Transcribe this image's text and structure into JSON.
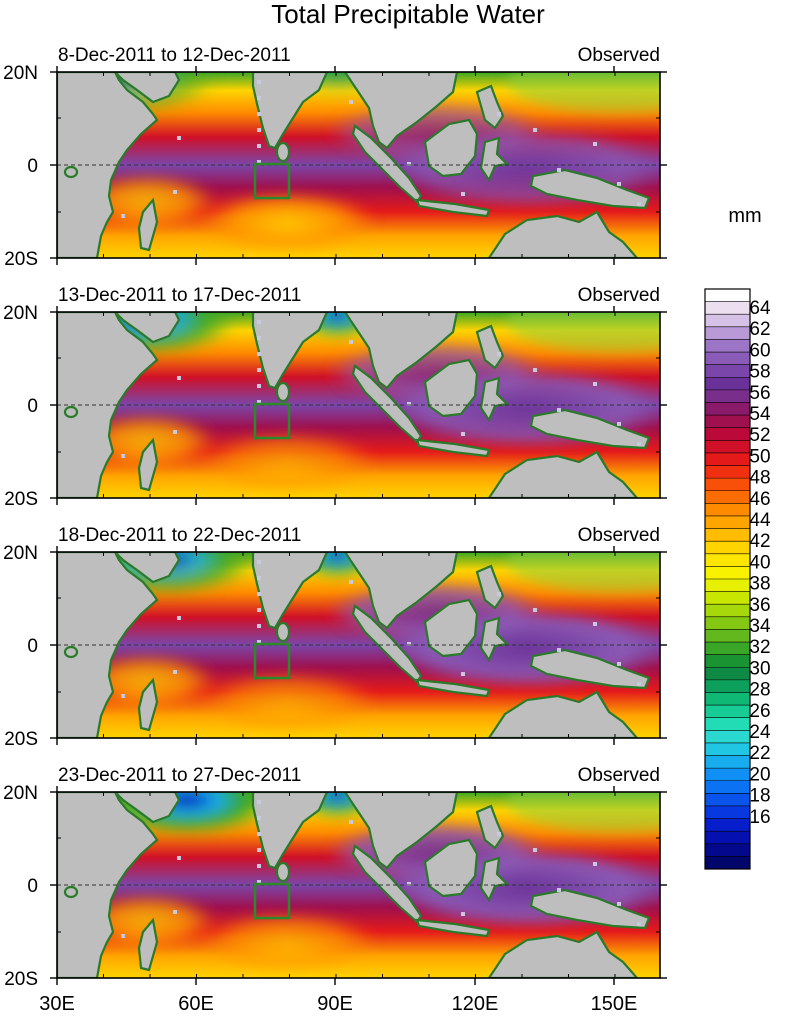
{
  "title": "Total Precipitable Water",
  "units_label": "mm",
  "lat_labels": [
    "20N",
    "0",
    "20S"
  ],
  "lon_labels": [
    "30E",
    "60E",
    "90E",
    "120E",
    "150E"
  ],
  "panels": [
    {
      "date_range": "8-Dec-2011 to 12-Dec-2011",
      "status": "Observed"
    },
    {
      "date_range": "13-Dec-2011 to 17-Dec-2011",
      "status": "Observed"
    },
    {
      "date_range": "18-Dec-2011 to 22-Dec-2011",
      "status": "Observed"
    },
    {
      "date_range": "23-Dec-2011 to 27-Dec-2011",
      "status": "Observed"
    }
  ],
  "colorbar": {
    "labels": [
      "64",
      "62",
      "60",
      "58",
      "56",
      "54",
      "52",
      "50",
      "48",
      "46",
      "44",
      "42",
      "40",
      "38",
      "36",
      "34",
      "32",
      "30",
      "28",
      "26",
      "24",
      "22",
      "20",
      "18",
      "16"
    ],
    "colors": [
      "#ffffff",
      "#ece0f0",
      "#d6c2e6",
      "#b99ad6",
      "#9d75c6",
      "#8a5cb8",
      "#7a46aa",
      "#6a3198",
      "#782e8a",
      "#8a1a6a",
      "#a0104e",
      "#bb0a3a",
      "#d01028",
      "#e41a1a",
      "#f03010",
      "#f85008",
      "#fc6c04",
      "#fe8a00",
      "#ffa400",
      "#ffbc00",
      "#ffd400",
      "#ffe600",
      "#f8f200",
      "#e6f000",
      "#c8e600",
      "#a6d80c",
      "#84c814",
      "#62b81c",
      "#3aa628",
      "#1a9432",
      "#0f8a44",
      "#0ca05c",
      "#10b876",
      "#18cc96",
      "#22dcb6",
      "#2ad8d0",
      "#20c6e2",
      "#16acee",
      "#1090f4",
      "#0c72f4",
      "#0a54ec",
      "#0838e0",
      "#061ecc",
      "#0410b0",
      "#04088c",
      "#02056a"
    ]
  },
  "styles": {
    "land": "#bebebe",
    "coast": "#2a7a2a",
    "box": "#2a8a2a",
    "equator_line": "#333333",
    "missing": "#c8c8e0"
  }
}
